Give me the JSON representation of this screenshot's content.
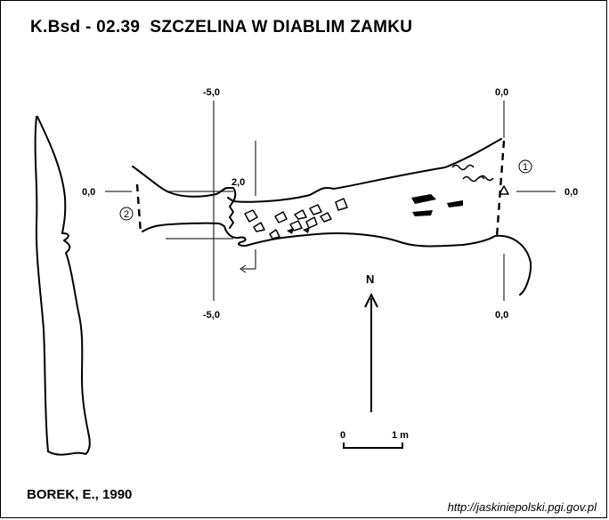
{
  "title": "K.Bsd - 02.39  SZCZELINA W DIABLIM ZAMKU",
  "author": "BOREK, E., 1990",
  "source_url": "http://jaskiniepolski.pgi.gov.pl",
  "north_label": "N",
  "scale_bar": {
    "start_label": "0",
    "end_label": "1 m"
  },
  "station_markers": [
    "1",
    "2"
  ],
  "cross_section_labels": {
    "sec_left_top": "-5,0",
    "sec_left_bottom": "-5,0",
    "sec_left_side": "0,0",
    "sec_mid": "2,0",
    "sec_right_top": "0,0",
    "sec_right_bottom": "0,0",
    "sec_right_side": "0,0"
  }
}
